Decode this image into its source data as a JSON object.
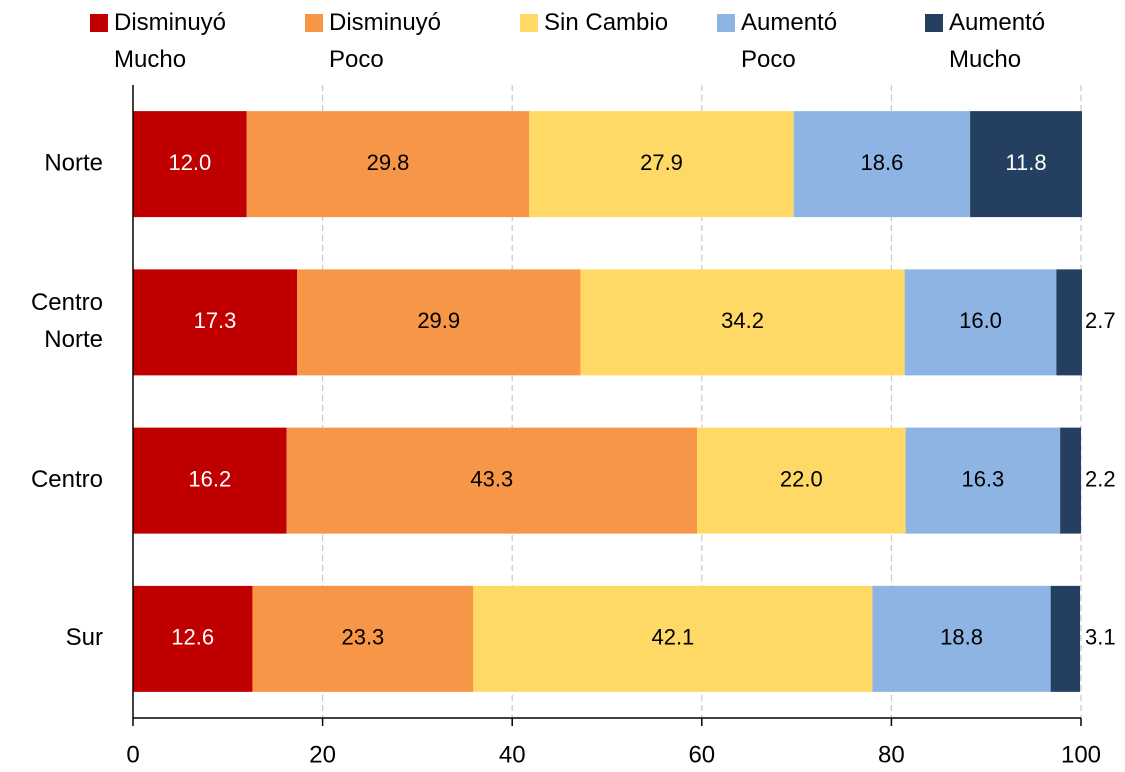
{
  "chart_data": {
    "type": "stacked_barh",
    "categories": [
      "Norte",
      "Centro Norte",
      "Centro",
      "Sur"
    ],
    "series": [
      {
        "name": "Disminuyó Mucho",
        "color": "#c00000",
        "label_color": "#ffffff",
        "values": [
          12.0,
          17.3,
          16.2,
          12.6
        ],
        "value_labels": [
          "12.0",
          "17.3",
          "16.2",
          "12.6"
        ]
      },
      {
        "name": "Disminuyó Poco",
        "color": "#f79646",
        "label_color": "#000000",
        "values": [
          29.8,
          29.9,
          43.3,
          23.3
        ],
        "value_labels": [
          "29.8",
          "29.9",
          "43.3",
          "23.3"
        ]
      },
      {
        "name": "Sin Cambio",
        "color": "#ffd966",
        "label_color": "#000000",
        "values": [
          27.9,
          34.2,
          22.0,
          42.1
        ],
        "value_labels": [
          "27.9",
          "34.2",
          "22.0",
          "42.1"
        ]
      },
      {
        "name": "Aumentó Poco",
        "color": "#8db4e2",
        "label_color": "#000000",
        "values": [
          18.6,
          16.0,
          16.3,
          18.8
        ],
        "value_labels": [
          "18.6",
          "16.0",
          "16.3",
          "18.8"
        ]
      },
      {
        "name": "Aumentó Mucho",
        "color": "#243f60",
        "label_color": "#ffffff",
        "values": [
          11.8,
          2.7,
          2.2,
          3.1
        ],
        "value_labels": [
          "11.8",
          "2.7",
          "2.2",
          "3.1"
        ]
      }
    ],
    "xlim": [
      0,
      100
    ],
    "xticks": [
      0,
      20,
      40,
      60,
      80,
      100
    ],
    "grid": true,
    "legend": "top"
  }
}
